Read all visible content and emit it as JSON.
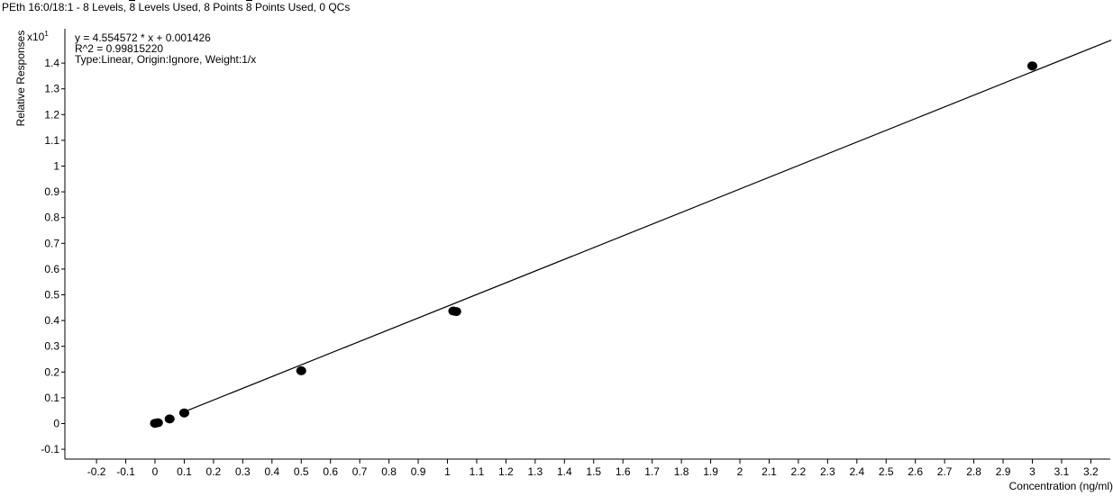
{
  "title": {
    "compound": "PEth 16:0/18:1",
    "levels_text": "8 Levels,",
    "levels_used_num": "8",
    "levels_used_text": "Levels Used,",
    "points_text": "8 Points",
    "points_used_num": "8",
    "points_used_text": "Points Used, 0 QCs"
  },
  "annotation": {
    "equation": "y = 4.554572 * x  + 0.001426",
    "r2": "R^2 = 0.99815220",
    "fit": "Type:Linear, Origin:Ignore, Weight:1/x"
  },
  "y_scale": {
    "base": "x10",
    "exp": "1"
  },
  "chart_data": {
    "type": "scatter",
    "xlabel": "Concentration (ng/ml)",
    "ylabel": "Relative Responses",
    "xlim": [
      -0.3,
      3.27
    ],
    "ylim": [
      -0.15,
      1.48
    ],
    "x_ticks": [
      "-0.2",
      "-0.1",
      "0",
      "0.1",
      "0.2",
      "0.3",
      "0.4",
      "0.5",
      "0.6",
      "0.7",
      "0.8",
      "0.9",
      "1",
      "1.1",
      "1.2",
      "1.3",
      "1.4",
      "1.5",
      "1.6",
      "1.7",
      "1.8",
      "1.9",
      "2",
      "2.1",
      "2.2",
      "2.3",
      "2.4",
      "2.5",
      "2.6",
      "2.7",
      "2.8",
      "2.9",
      "3",
      "3.1",
      "3.2"
    ],
    "y_ticks": [
      "-0.1",
      "0",
      "0.1",
      "0.2",
      "0.3",
      "0.4",
      "0.5",
      "0.6",
      "0.7",
      "0.8",
      "0.9",
      "1",
      "1.1",
      "1.2",
      "1.3",
      "1.4"
    ],
    "points": [
      {
        "x": 0.0,
        "y": 0.001
      },
      {
        "x": 0.01,
        "y": 0.003
      },
      {
        "x": 0.05,
        "y": 0.018
      },
      {
        "x": 0.1,
        "y": 0.041
      },
      {
        "x": 0.5,
        "y": 0.205
      },
      {
        "x": 1.02,
        "y": 0.437
      },
      {
        "x": 1.03,
        "y": 0.435
      },
      {
        "x": 3.0,
        "y": 1.389
      }
    ],
    "fit_line": {
      "slope": 0.4554572,
      "intercept": 0.0001426,
      "x_range": [
        0.1,
        3.27
      ]
    },
    "grid": false,
    "legend": "none"
  }
}
